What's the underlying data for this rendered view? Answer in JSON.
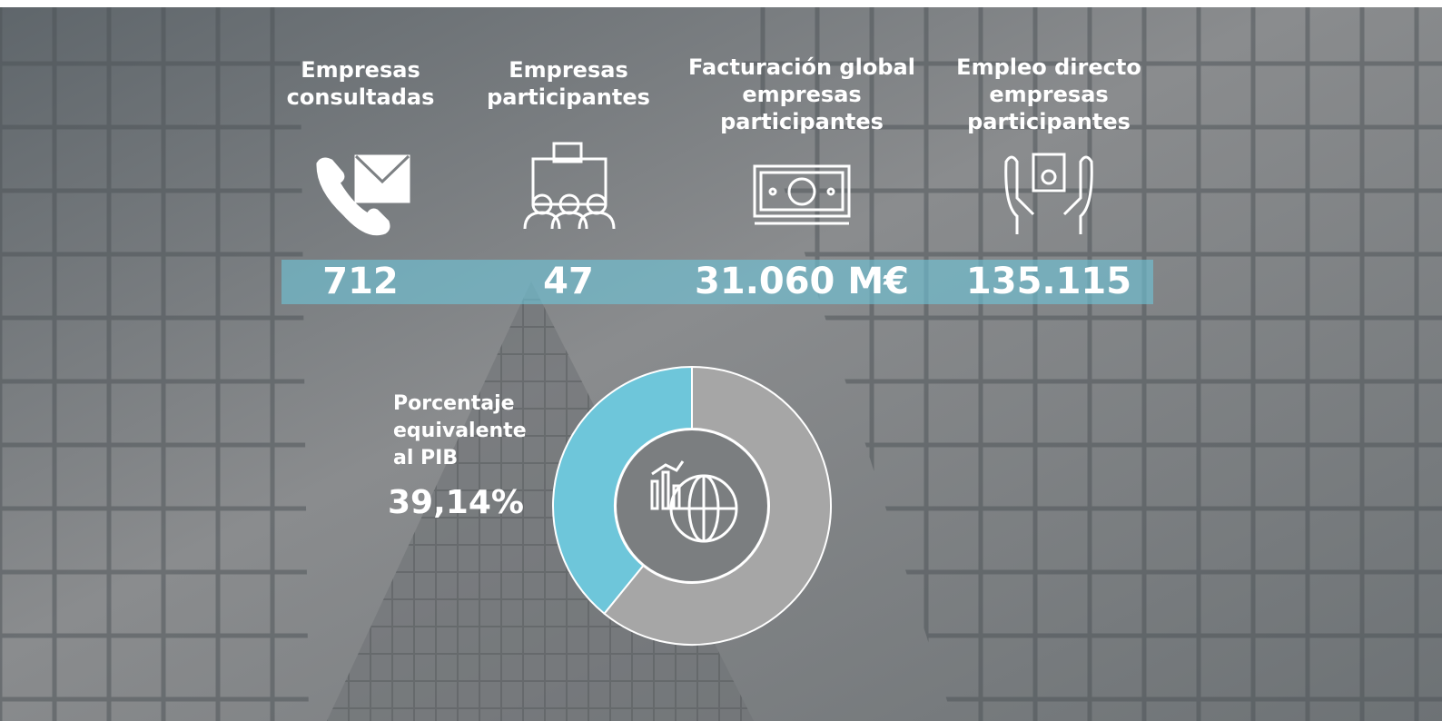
{
  "stats": [
    {
      "label": "Empresas consultadas",
      "value": "712"
    },
    {
      "label": "Empresas participantes",
      "value": "47"
    },
    {
      "label": "Facturación global empresas participantes",
      "value": "31.060 M€"
    },
    {
      "label": "Empleo directo empresas participantes",
      "value": "135.115"
    }
  ],
  "chart_data": {
    "type": "donut",
    "title": "Porcentaje equivalente al PIB",
    "values": [
      39.14,
      60.86
    ],
    "value_labels": [
      "39,14%",
      null
    ],
    "colors": [
      "#6ec6da",
      "#a6a6a6"
    ]
  }
}
